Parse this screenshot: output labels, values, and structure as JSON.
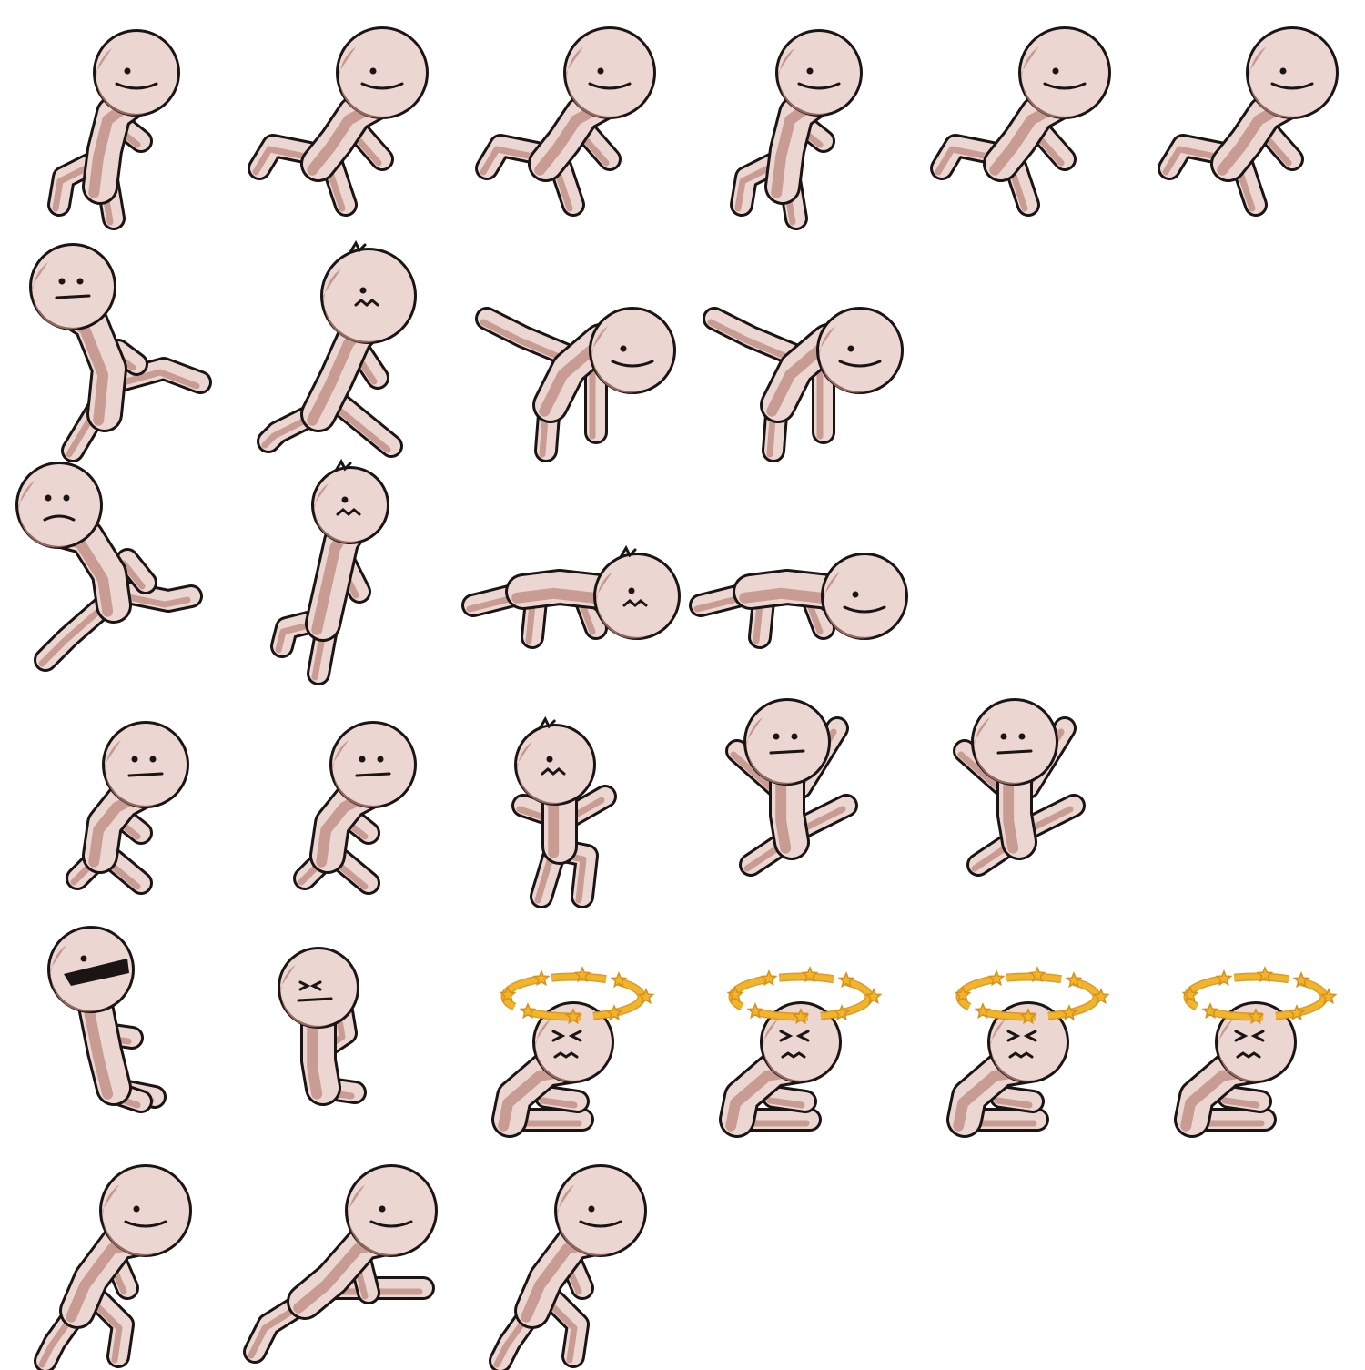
{
  "sprite_sheet": {
    "colors": {
      "skin": "#ecd6d1",
      "shade": "#b98378",
      "outline": "#1a1414",
      "halo": "#f0b52a",
      "halo_outline": "#d8901a"
    },
    "rows": [
      {
        "name": "run",
        "frames": [
          {
            "pose": "stride-left",
            "face": "smile"
          },
          {
            "pose": "kick-back",
            "face": "smile"
          },
          {
            "pose": "kick-back",
            "face": "smile"
          },
          {
            "pose": "stride-left",
            "face": "smile"
          },
          {
            "pose": "kick-back",
            "face": "smile"
          },
          {
            "pose": "kick-back",
            "face": "smile"
          }
        ]
      },
      {
        "name": "kick",
        "frames": [
          {
            "pose": "kick-side",
            "face": "neutral"
          },
          {
            "pose": "kick-side-hit",
            "face": "hurt"
          },
          {
            "pose": "handstand",
            "face": "smile"
          },
          {
            "pose": "handstand",
            "face": "smile"
          }
        ]
      },
      {
        "name": "knockdown",
        "frames": [
          {
            "pose": "lean-kick",
            "face": "frown"
          },
          {
            "pose": "stagger",
            "face": "hurt"
          },
          {
            "pose": "lying",
            "face": "hurt"
          },
          {
            "pose": "lying",
            "face": "smile"
          }
        ]
      },
      {
        "name": "hurt",
        "frames": [
          {
            "pose": "crouch",
            "face": "flat"
          },
          {
            "pose": "crouch",
            "face": "flat"
          },
          {
            "pose": "stand-hands",
            "face": "hurt"
          },
          {
            "pose": "jump-split",
            "face": "flat"
          },
          {
            "pose": "jump-split",
            "face": "flat"
          }
        ]
      },
      {
        "name": "dizzy",
        "frames": [
          {
            "pose": "sit-shout",
            "face": "shout"
          },
          {
            "pose": "sit-squint",
            "face": "squint"
          },
          {
            "pose": "sit-dizzy",
            "face": "dizzy",
            "halo": true
          },
          {
            "pose": "sit-dizzy",
            "face": "dizzy",
            "halo": true
          },
          {
            "pose": "sit-dizzy",
            "face": "dizzy",
            "halo": true
          },
          {
            "pose": "sit-dizzy",
            "face": "dizzy",
            "halo": true
          }
        ]
      },
      {
        "name": "get-up",
        "frames": [
          {
            "pose": "hunch",
            "face": "smile"
          },
          {
            "pose": "lunge",
            "face": "smile"
          },
          {
            "pose": "hunch",
            "face": "smile"
          }
        ]
      }
    ]
  }
}
